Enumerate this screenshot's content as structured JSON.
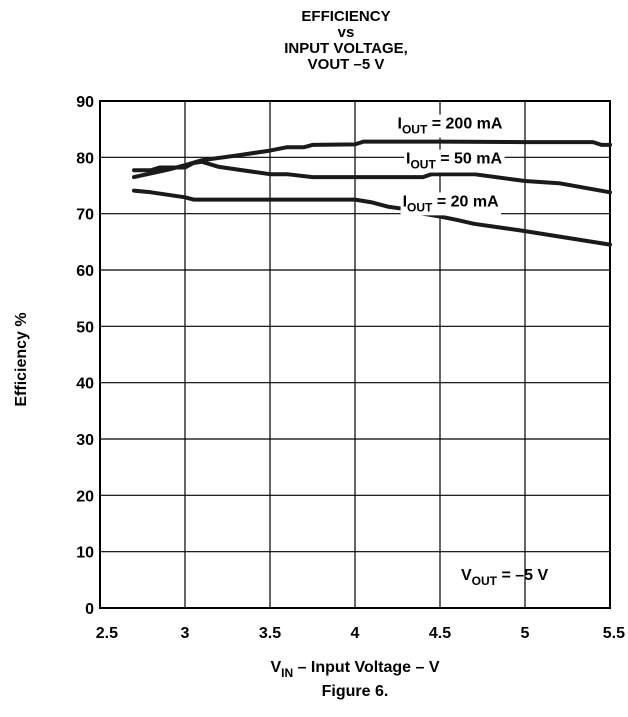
{
  "chart_data": {
    "type": "line",
    "title_lines": [
      "EFFICIENCY",
      "vs",
      "INPUT VOLTAGE,",
      "VOUT –5 V"
    ],
    "xlabel": {
      "main": "V",
      "sub": "IN",
      "rest": " – Input Voltage – V"
    },
    "ylabel": "Efficiency %",
    "caption": "Figure 6.",
    "xlim": [
      2.5,
      5.5
    ],
    "ylim": [
      0,
      90
    ],
    "x_ticks": [
      {
        "value": 2.5,
        "label": "2.5"
      },
      {
        "value": 3,
        "label": "3"
      },
      {
        "value": 3.5,
        "label": "3.5"
      },
      {
        "value": 4,
        "label": "4"
      },
      {
        "value": 4.5,
        "label": "4.5"
      },
      {
        "value": 5,
        "label": "5"
      },
      {
        "value": 5.5,
        "label": "5.5"
      }
    ],
    "y_ticks": [
      {
        "value": 0,
        "label": "0"
      },
      {
        "value": 10,
        "label": "10"
      },
      {
        "value": 20,
        "label": "20"
      },
      {
        "value": 30,
        "label": "30"
      },
      {
        "value": 40,
        "label": "40"
      },
      {
        "value": 50,
        "label": "50"
      },
      {
        "value": 60,
        "label": "60"
      },
      {
        "value": 70,
        "label": "70"
      },
      {
        "value": 80,
        "label": "80"
      },
      {
        "value": 90,
        "label": "90"
      }
    ],
    "grid": true,
    "series": [
      {
        "name": "IOUT = 200 mA",
        "label_main": "I",
        "label_sub": "OUT",
        "label_rest": " = 200 mA",
        "label_at": {
          "x": 4.25,
          "y": 85.1
        },
        "points": [
          [
            2.7,
            76.5
          ],
          [
            2.9,
            77.8
          ],
          [
            3.0,
            78.6
          ],
          [
            3.1,
            79.5
          ],
          [
            3.3,
            80.3
          ],
          [
            3.5,
            81.2
          ],
          [
            3.6,
            81.8
          ],
          [
            3.7,
            81.8
          ],
          [
            3.75,
            82.2
          ],
          [
            4.0,
            82.3
          ],
          [
            4.05,
            82.8
          ],
          [
            4.5,
            82.8
          ],
          [
            5.0,
            82.7
          ],
          [
            5.4,
            82.7
          ],
          [
            5.45,
            82.2
          ],
          [
            5.5,
            82.2
          ]
        ],
        "color": "#1a1a1a"
      },
      {
        "name": "IOUT = 50 mA",
        "label_main": "I",
        "label_sub": "OUT",
        "label_rest": " = 50 mA",
        "label_at": {
          "x": 4.3,
          "y": 78.9
        },
        "points": [
          [
            2.7,
            77.7
          ],
          [
            2.8,
            77.7
          ],
          [
            2.85,
            78.2
          ],
          [
            3.0,
            78.2
          ],
          [
            3.05,
            79.0
          ],
          [
            3.1,
            79.2
          ],
          [
            3.2,
            78.3
          ],
          [
            3.5,
            77.0
          ],
          [
            3.6,
            77.0
          ],
          [
            3.75,
            76.5
          ],
          [
            4.0,
            76.5
          ],
          [
            4.1,
            76.5
          ],
          [
            4.4,
            76.5
          ],
          [
            4.45,
            77.0
          ],
          [
            4.7,
            77.0
          ],
          [
            5.0,
            75.8
          ],
          [
            5.2,
            75.4
          ],
          [
            5.5,
            73.8
          ]
        ],
        "color": "#1a1a1a"
      },
      {
        "name": "IOUT = 20 mA",
        "label_main": "I",
        "label_sub": "OUT",
        "label_rest": " = 20 mA",
        "label_at": {
          "x": 4.28,
          "y": 71.3
        },
        "points": [
          [
            2.7,
            74.1
          ],
          [
            2.8,
            73.8
          ],
          [
            3.0,
            72.9
          ],
          [
            3.05,
            72.5
          ],
          [
            3.1,
            72.5
          ],
          [
            3.5,
            72.5
          ],
          [
            4.0,
            72.5
          ],
          [
            4.1,
            72.0
          ],
          [
            4.2,
            71.2
          ],
          [
            4.3,
            70.8
          ],
          [
            4.4,
            70.0
          ],
          [
            4.5,
            69.5
          ],
          [
            4.6,
            68.9
          ],
          [
            4.7,
            68.2
          ],
          [
            5.0,
            66.9
          ],
          [
            5.5,
            64.5
          ]
        ],
        "color": "#1a1a1a"
      }
    ],
    "annotations": [
      {
        "main": "V",
        "sub": "OUT",
        "rest": " = –5 V",
        "x": 4.8,
        "y": 5.0
      }
    ]
  }
}
